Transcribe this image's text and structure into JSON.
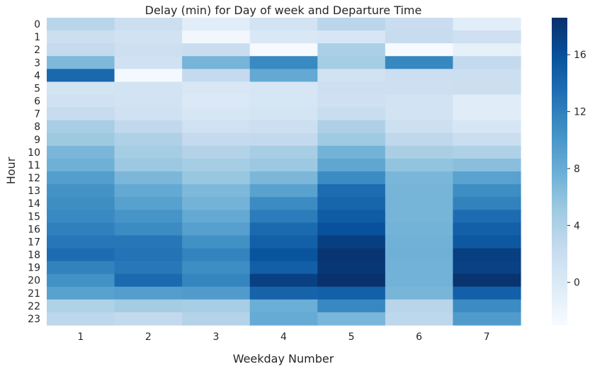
{
  "chart_data": {
    "type": "heatmap",
    "title": "Delay (min) for Day of week and Departure Time",
    "xlabel": "Weekday Number",
    "ylabel": "Hour",
    "x": [
      "1",
      "2",
      "3",
      "4",
      "5",
      "6",
      "7"
    ],
    "y": [
      "0",
      "1",
      "2",
      "3",
      "4",
      "5",
      "6",
      "7",
      "8",
      "9",
      "10",
      "11",
      "12",
      "13",
      "14",
      "15",
      "16",
      "17",
      "18",
      "19",
      "20",
      "21",
      "22",
      "23"
    ],
    "values": [
      [
        3.3,
        1.8,
        -0.6,
        1.0,
        3.2,
        2.0,
        -0.6
      ],
      [
        1.8,
        1.2,
        -2.4,
        0.2,
        0.5,
        2.3,
        1.5
      ],
      [
        2.5,
        1.6,
        2.0,
        -2.8,
        4.2,
        -2.9,
        -1.1
      ],
      [
        6.8,
        1.4,
        7.2,
        11.2,
        4.6,
        11.4,
        2.6
      ],
      [
        14.0,
        -2.6,
        2.5,
        8.3,
        1.2,
        1.8,
        1.8
      ],
      [
        0.9,
        1.0,
        0.3,
        0.5,
        1.6,
        1.6,
        1.8
      ],
      [
        1.4,
        1.0,
        0.0,
        0.6,
        1.5,
        1.0,
        -0.5
      ],
      [
        2.2,
        1.4,
        0.6,
        0.9,
        2.1,
        1.1,
        -0.5
      ],
      [
        4.4,
        2.7,
        1.4,
        1.7,
        4.1,
        1.6,
        0.5
      ],
      [
        5.1,
        4.0,
        2.5,
        2.6,
        5.0,
        2.9,
        1.9
      ],
      [
        7.0,
        4.6,
        3.6,
        4.5,
        7.3,
        4.3,
        4.0
      ],
      [
        7.6,
        5.2,
        4.6,
        5.2,
        8.6,
        5.7,
        6.2
      ],
      [
        9.3,
        6.9,
        5.4,
        6.9,
        11.0,
        7.0,
        9.0
      ],
      [
        10.4,
        8.3,
        6.8,
        9.0,
        13.6,
        7.2,
        10.8
      ],
      [
        10.8,
        9.1,
        7.3,
        11.0,
        14.2,
        7.2,
        11.8
      ],
      [
        11.2,
        10.2,
        8.3,
        12.3,
        15.0,
        7.2,
        13.6
      ],
      [
        12.0,
        11.0,
        9.2,
        13.8,
        15.9,
        7.3,
        14.6
      ],
      [
        12.8,
        12.8,
        10.6,
        14.6,
        17.4,
        7.5,
        15.3
      ],
      [
        13.6,
        13.0,
        11.7,
        15.7,
        18.2,
        7.6,
        17.4
      ],
      [
        11.8,
        12.6,
        10.8,
        14.7,
        18.0,
        7.4,
        17.2
      ],
      [
        10.5,
        13.8,
        11.6,
        17.3,
        18.5,
        7.4,
        18.3
      ],
      [
        9.0,
        9.3,
        9.6,
        14.4,
        14.6,
        7.1,
        14.6
      ],
      [
        3.9,
        4.7,
        4.4,
        7.8,
        11.3,
        3.3,
        11.0
      ],
      [
        3.0,
        2.6,
        3.6,
        8.1,
        7.0,
        3.0,
        9.6
      ]
    ],
    "colorbar": {
      "min": -3,
      "max": 18.6,
      "ticks": [
        0,
        4,
        8,
        12,
        16
      ],
      "colormap": "Blues"
    }
  }
}
